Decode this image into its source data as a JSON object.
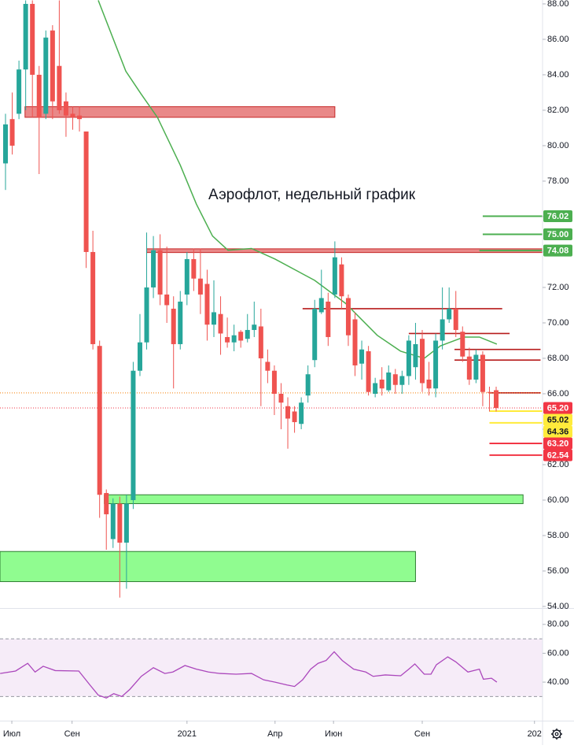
{
  "chart_data": {
    "type": "candlestick",
    "title": "Аэрофлот, недельный график",
    "xlim": [
      -0.82,
      79.9
    ],
    "ylim": [
      53.91,
      88.22
    ],
    "yticks": [
      {
        "value": 54,
        "label": "54.00"
      },
      {
        "value": 56,
        "label": "56.00"
      },
      {
        "value": 58,
        "label": "58.00"
      },
      {
        "value": 60,
        "label": "60.00"
      },
      {
        "value": 62,
        "label": "62.00"
      },
      {
        "value": 64,
        "label": "64.00"
      },
      {
        "value": 66,
        "label": "66.00"
      },
      {
        "value": 68,
        "label": "68.00"
      },
      {
        "value": 70,
        "label": "70.00"
      },
      {
        "value": 72,
        "label": "72.00"
      },
      {
        "value": 74,
        "label": "74.00"
      },
      {
        "value": 76,
        "label": "76.00"
      },
      {
        "value": 78,
        "label": "78.00"
      },
      {
        "value": 80,
        "label": "80.00"
      },
      {
        "value": 82,
        "label": "82.00"
      },
      {
        "value": 84,
        "label": "84.00"
      },
      {
        "value": 86,
        "label": "86.00"
      },
      {
        "value": 88,
        "label": "88.00"
      }
    ],
    "xticks": [
      {
        "value": 0.94,
        "label": "Июл"
      },
      {
        "value": 9.9,
        "label": "Сен"
      },
      {
        "value": 27.0,
        "label": "2021"
      },
      {
        "value": 40.1,
        "label": "Апр"
      },
      {
        "value": 48.8,
        "label": "Июн"
      },
      {
        "value": 62.0,
        "label": "Сен"
      },
      {
        "value": 78.7,
        "label": "202"
      }
    ],
    "up_color": "#26a69a",
    "down_color": "#ef5350",
    "candles": {
      "open": [
        79.0,
        81.5,
        81.8,
        84.3,
        88.0,
        84.0,
        81.8,
        86.5,
        84.5,
        82.5,
        81.8,
        81.7,
        80.8,
        74.0,
        68.7,
        60.4,
        57.8,
        59.8,
        57.6,
        60.0,
        67.3,
        68.9,
        72.0,
        74.1,
        71.6,
        70.8,
        68.8,
        71.6,
        73.6,
        72.5,
        72.2,
        69.9,
        70.5,
        69.2,
        68.9,
        69.5,
        69.1,
        69.6,
        69.8,
        67.8,
        67.3,
        66.0,
        65.3,
        65.0,
        64.3,
        65.9,
        67.9,
        70.6,
        71.2,
        71.6,
        73.3,
        71.4,
        70.2,
        67.7,
        68.4,
        66.0,
        66.8,
        66.2,
        67.1,
        66.5,
        67.0,
        67.5,
        69.1,
        66.8,
        66.3,
        69.0,
        70.2,
        70.8,
        69.5,
        68.1,
        66.8,
        68.2,
        66.1,
        66.2
      ],
      "close": [
        81.2,
        80.0,
        84.3,
        88.0,
        84.0,
        81.6,
        86.1,
        82.5,
        82.0,
        81.7,
        81.6,
        81.5,
        74.0,
        68.8,
        60.3,
        59.2,
        59.8,
        57.6,
        59.8,
        67.3,
        68.9,
        72.0,
        74.1,
        71.6,
        71.0,
        68.8,
        71.2,
        73.6,
        72.5,
        71.6,
        69.9,
        70.6,
        69.4,
        68.9,
        69.3,
        69.0,
        69.6,
        69.9,
        68.0,
        67.3,
        66.0,
        65.5,
        64.6,
        64.4,
        65.5,
        67.1,
        70.8,
        71.4,
        69.2,
        73.7,
        71.5,
        69.3,
        67.6,
        68.5,
        66.1,
        66.6,
        66.3,
        67.2,
        66.5,
        67.0,
        69.0,
        68.8,
        66.6,
        66.3,
        69.0,
        70.2,
        70.8,
        69.6,
        68.1,
        66.8,
        68.2,
        66.1,
        66.1,
        65.2
      ],
      "high": [
        81.8,
        83.0,
        84.8,
        88.2,
        88.2,
        84.5,
        86.5,
        86.8,
        88.2,
        83.0,
        82.2,
        82.2,
        80.8,
        75.2,
        69.0,
        60.6,
        60.1,
        60.2,
        60.3,
        67.8,
        70.5,
        75.1,
        74.9,
        75.0,
        74.3,
        71.5,
        71.8,
        74.0,
        74.2,
        74.2,
        73.0,
        72.4,
        71.5,
        70.3,
        69.9,
        69.6,
        70.5,
        71.2,
        70.8,
        68.5,
        67.6,
        66.6,
        65.8,
        65.3,
        65.8,
        67.6,
        71.3,
        73.0,
        71.7,
        74.6,
        73.7,
        71.6,
        70.6,
        69.0,
        68.7,
        66.9,
        67.5,
        67.6,
        67.4,
        67.3,
        69.3,
        70.0,
        69.6,
        67.8,
        69.4,
        72.0,
        72.0,
        71.8,
        69.8,
        68.6,
        68.5,
        68.4,
        66.4,
        66.4
      ],
      "low": [
        77.5,
        79.5,
        81.5,
        82.0,
        81.6,
        78.4,
        81.5,
        81.5,
        81.8,
        80.5,
        80.9,
        80.8,
        73.1,
        68.5,
        59.0,
        57.2,
        57.3,
        54.5,
        55.0,
        59.5,
        67.0,
        68.5,
        71.4,
        71.0,
        70.0,
        66.3,
        68.5,
        71.0,
        71.8,
        70.5,
        69.0,
        69.2,
        68.2,
        68.6,
        68.4,
        68.6,
        68.9,
        69.2,
        65.3,
        66.6,
        64.8,
        64.0,
        62.9,
        63.8,
        64.0,
        65.5,
        67.5,
        70.5,
        68.7,
        71.4,
        70.8,
        68.7,
        67.0,
        66.8,
        65.9,
        65.8,
        65.9,
        66.1,
        66.0,
        66.0,
        66.5,
        66.8,
        66.1,
        65.9,
        65.8,
        68.5,
        70.0,
        69.2,
        67.8,
        66.5,
        66.6,
        65.3,
        65.0,
        65.0
      ]
    },
    "ma": {
      "color": "#4caf50",
      "x": [
        13.8,
        17.9,
        20.2,
        22.6,
        26.0,
        28.4,
        30.8,
        33.1,
        36.6,
        40.1,
        46.0,
        50.6,
        55.3,
        58.8,
        62.3,
        64.7,
        68.2,
        70.5,
        73.1
      ],
      "values": [
        88.2,
        84.2,
        82.9,
        81.6,
        78.9,
        76.7,
        74.9,
        74.1,
        74.2,
        73.6,
        72.4,
        71.1,
        69.3,
        68.4,
        68.0,
        68.7,
        69.2,
        69.2,
        68.8
      ]
    },
    "zones": [
      {
        "low": 81.6,
        "high": 82.2,
        "from": 2.9,
        "to": 49.0,
        "color": "#e57373",
        "stroke": "#c62828"
      },
      {
        "low": 73.97,
        "high": 74.18,
        "from": 21.0,
        "to": 79.9,
        "color": "#e57373",
        "stroke": "#c62828"
      },
      {
        "low": 59.8,
        "high": 60.3,
        "from": 14.7,
        "to": 77.0,
        "color": "#7dfb7d",
        "stroke": "#2e7d32"
      },
      {
        "low": 55.4,
        "high": 57.1,
        "from": -0.82,
        "to": 61.0,
        "color": "#7dfb7d",
        "stroke": "#2e7d32"
      }
    ],
    "lines": [
      {
        "value": 70.8,
        "color": "#b71c1c",
        "from": 44.2,
        "to": 73.9
      },
      {
        "value": 69.4,
        "color": "#b71c1c",
        "from": 60.0,
        "to": 75.0
      },
      {
        "value": 68.5,
        "color": "#b71c1c",
        "from": 66.8,
        "to": 79.6
      },
      {
        "value": 67.9,
        "color": "#b71c1c",
        "from": 66.8,
        "to": 79.6
      },
      {
        "value": 66.05,
        "color": "#b71c1c",
        "from": 72.0,
        "to": 79.6
      },
      {
        "value": 66.05,
        "color": "#f57c00",
        "dotted": true,
        "from": -0.82,
        "to": 79.9
      }
    ],
    "levels": [
      {
        "value": 76.02,
        "color": "#4caf50",
        "from": 71.0,
        "to": 79.9
      },
      {
        "value": 75,
        "label": "75.00",
        "color": "#4caf50",
        "from": 71.0,
        "to": 79.9
      },
      {
        "value": 74.08,
        "color": "#4caf50",
        "from": 70.5,
        "to": 79.9
      },
      {
        "value": 65.2,
        "label": "65.20",
        "color": "#f23645",
        "dotted": true,
        "from": -0.82,
        "to": 79.9
      },
      {
        "value": 65.02,
        "color": "#ffeb3b",
        "from": 72.0,
        "to": 79.9
      },
      {
        "value": 64.36,
        "color": "#ffeb3b",
        "from": 72.0,
        "to": 79.9
      },
      {
        "value": 63.2,
        "label": "63.20",
        "color": "#f23645",
        "from": 72.0,
        "to": 79.9
      },
      {
        "value": 62.54,
        "color": "#f23645",
        "from": 72.0,
        "to": 79.9
      }
    ],
    "rsi": {
      "color": "#ab47bc",
      "ylim": [
        13.3,
        90.8
      ],
      "yticks": [
        {
          "value": 40,
          "label": "40.00"
        },
        {
          "value": 60,
          "label": "60.00"
        },
        {
          "value": 80,
          "label": "80.00"
        }
      ],
      "band": [
        30,
        70
      ],
      "x": [
        -0.8,
        1.5,
        3.3,
        4.4,
        5.6,
        7.4,
        10.9,
        12.6,
        13.8,
        15.0,
        16.1,
        17.3,
        18.5,
        20.2,
        22.0,
        23.7,
        24.9,
        26.7,
        28.4,
        30.2,
        31.9,
        34.3,
        36.6,
        38.4,
        40.1,
        41.9,
        43.0,
        44.2,
        45.4,
        46.5,
        47.7,
        48.9,
        50.1,
        51.8,
        53.6,
        54.7,
        56.5,
        58.8,
        60.0,
        60.9,
        62.3,
        63.3,
        64.1,
        65.8,
        67.0,
        68.8,
        70.5,
        71.1,
        72.3,
        73.1
      ],
      "values": [
        46,
        47.7,
        53,
        47,
        51,
        48,
        47.7,
        37.8,
        31,
        29,
        32,
        30,
        35,
        44,
        50,
        46,
        47,
        51.5,
        49,
        47,
        46,
        45.5,
        46,
        41.6,
        40,
        38,
        37,
        41.6,
        49,
        53,
        55,
        61,
        55,
        49,
        47,
        44,
        45,
        44.4,
        49,
        52.6,
        45.5,
        45.5,
        52,
        57.5,
        54,
        47,
        49,
        42,
        42.7,
        40
      ]
    }
  }
}
